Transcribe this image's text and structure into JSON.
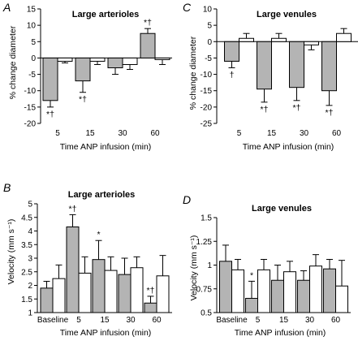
{
  "colors": {
    "gray_fill": "#b4b4b4",
    "white_fill": "#ffffff",
    "stroke": "#000000"
  },
  "chart_data": [
    {
      "panel": "A",
      "title": "Large arterioles",
      "type": "bar",
      "xlabel": "Time ANP infusion (min)",
      "ylabel": "% change diameter",
      "categories": [
        "5",
        "15",
        "30",
        "60"
      ],
      "ylim": [
        -20,
        15
      ],
      "yticks": [
        -20,
        -15,
        -10,
        -5,
        0,
        5,
        10,
        15
      ],
      "series": [
        {
          "fill": "gray",
          "values": [
            -13,
            -7,
            -3,
            7.5
          ],
          "errors": [
            2,
            3.5,
            2,
            1.5
          ]
        },
        {
          "fill": "white",
          "values": [
            -1,
            -1,
            -2,
            -0.5
          ],
          "errors": [
            0.5,
            1,
            1.5,
            1.5
          ]
        }
      ],
      "annotations": [
        {
          "series": 0,
          "index": 0,
          "text": "*†"
        },
        {
          "series": 0,
          "index": 1,
          "text": "*†"
        },
        {
          "series": 0,
          "index": 3,
          "text": "*†"
        }
      ]
    },
    {
      "panel": "C",
      "title": "Large venules",
      "type": "bar",
      "xlabel": "Time ANP infusion (min)",
      "ylabel": "% change diameter",
      "categories": [
        "5",
        "15",
        "30",
        "60"
      ],
      "ylim": [
        -25,
        10
      ],
      "yticks": [
        -25,
        -20,
        -15,
        -10,
        -5,
        0,
        5,
        10
      ],
      "series": [
        {
          "fill": "gray",
          "values": [
            -6,
            -14.5,
            -14,
            -15
          ],
          "errors": [
            2,
            4,
            4,
            4.5
          ]
        },
        {
          "fill": "white",
          "values": [
            1,
            1,
            -1,
            2.5
          ],
          "errors": [
            1.5,
            1.5,
            1.5,
            1.5
          ]
        }
      ],
      "annotations": [
        {
          "series": 0,
          "index": 0,
          "text": "†"
        },
        {
          "series": 0,
          "index": 1,
          "text": "*†"
        },
        {
          "series": 0,
          "index": 2,
          "text": "*†"
        },
        {
          "series": 0,
          "index": 3,
          "text": "*†"
        }
      ]
    },
    {
      "panel": "B",
      "title": "Large arterioles",
      "type": "bar",
      "xlabel": "Time ANP infusion (min)",
      "ylabel": "Velocity (mm s⁻¹)",
      "categories": [
        "Baseline",
        "5",
        "15",
        "30",
        "60"
      ],
      "ylim": [
        1,
        5
      ],
      "yticks": [
        1,
        1.5,
        2,
        2.5,
        3,
        3.5,
        4,
        4.5,
        5
      ],
      "series": [
        {
          "fill": "gray",
          "values": [
            1.9,
            4.15,
            2.95,
            2.4,
            1.35
          ],
          "errors": [
            0.25,
            0.45,
            0.7,
            0.6,
            0.25
          ]
        },
        {
          "fill": "white",
          "values": [
            2.25,
            2.45,
            2.55,
            2.65,
            2.35
          ],
          "errors": [
            0.5,
            0.6,
            0.5,
            0.4,
            0.75
          ]
        }
      ],
      "annotations": [
        {
          "series": 0,
          "index": 1,
          "text": "*†"
        },
        {
          "series": 0,
          "index": 2,
          "text": "*"
        },
        {
          "series": 0,
          "index": 4,
          "text": "*†"
        }
      ]
    },
    {
      "panel": "D",
      "title": "Large venules",
      "type": "bar",
      "xlabel": "Time ANP infusion (min)",
      "ylabel": "Velocity (mm s⁻¹)",
      "categories": [
        "Baseline",
        "5",
        "15",
        "30",
        "60"
      ],
      "ylim": [
        0.5,
        1.5
      ],
      "yticks": [
        0.5,
        0.75,
        1,
        1.25,
        1.5
      ],
      "series": [
        {
          "fill": "gray",
          "values": [
            1.04,
            0.65,
            0.84,
            0.84,
            0.96
          ],
          "errors": [
            0.17,
            0.18,
            0.16,
            0.1,
            0.1
          ]
        },
        {
          "fill": "white",
          "values": [
            0.95,
            0.95,
            0.93,
            0.99,
            0.78
          ],
          "errors": [
            0.11,
            0.11,
            0.11,
            0.12,
            0.27
          ]
        }
      ],
      "annotations": [
        {
          "series": 0,
          "index": 1,
          "text": "*"
        }
      ]
    }
  ]
}
